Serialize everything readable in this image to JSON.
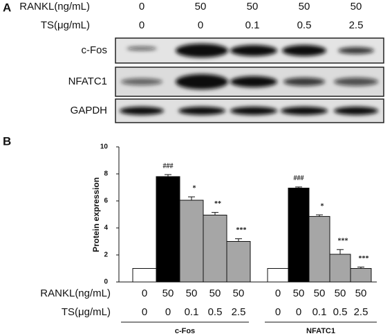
{
  "panel_a": {
    "label": "A",
    "row_labels": [
      "RANKL(ng/mL)",
      "TS(μg/mL)"
    ],
    "rankl": [
      "0",
      "50",
      "50",
      "50",
      "50"
    ],
    "ts": [
      "0",
      "0",
      "0.1",
      "0.5",
      "2.5"
    ],
    "bands": [
      "c-Fos",
      "NFATC1",
      "GAPDH"
    ]
  },
  "chart_data": {
    "type": "bar",
    "panel_label": "B",
    "ylabel": "Protein expression",
    "ylim": [
      0,
      10
    ],
    "yticks": [
      0,
      2,
      4,
      6,
      8,
      10
    ],
    "colors": [
      "#ffffff",
      "#000000",
      "#a6a6a6",
      "#a6a6a6",
      "#a6a6a6"
    ],
    "row_labels": [
      "RANKL(ng/mL)",
      "TS(μg/mL)"
    ],
    "rankl": [
      "0",
      "50",
      "50",
      "50",
      "50"
    ],
    "ts": [
      "0",
      "0",
      "0.1",
      "0.5",
      "2.5"
    ],
    "groups": [
      {
        "name": "c-Fos",
        "values": [
          1,
          7.8,
          6.05,
          4.95,
          3.0
        ],
        "errors": [
          0,
          0.15,
          0.25,
          0.2,
          0.2
        ],
        "annotations": [
          null,
          "###",
          "*",
          "**",
          "***"
        ]
      },
      {
        "name": "NFATC1",
        "values": [
          1,
          6.95,
          4.85,
          2.05,
          1.0
        ],
        "errors": [
          0,
          0.08,
          0.12,
          0.35,
          0.1
        ],
        "annotations": [
          null,
          "###",
          "*",
          "***",
          "***"
        ]
      }
    ]
  }
}
